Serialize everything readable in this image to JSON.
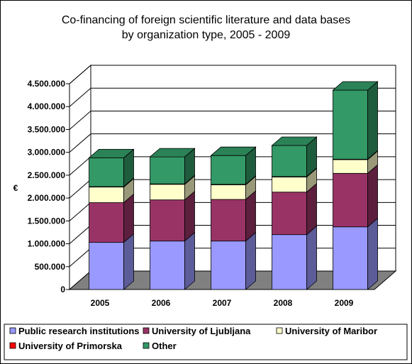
{
  "chart_data": {
    "type": "bar",
    "stacked": true,
    "title_line1": "Co-financing of foreign scientific literature and data bases",
    "title_line2": "by organization type, 2005 - 2009",
    "ylabel": "€",
    "ylim": [
      0,
      4500000
    ],
    "y_ticks": [
      "0",
      "500.000",
      "1.000.000",
      "1.500.000",
      "2.000.000",
      "2.500.000",
      "3.000.000",
      "3.500.000",
      "4.000.000",
      "4.500.000"
    ],
    "categories": [
      "2005",
      "2006",
      "2007",
      "2008",
      "2009"
    ],
    "series": [
      {
        "name": "Public research institutions",
        "color": "#9999ff",
        "values": [
          1030000,
          1060000,
          1060000,
          1200000,
          1370000
        ]
      },
      {
        "name": "University of Ljubljana",
        "color": "#993366",
        "values": [
          870000,
          900000,
          910000,
          930000,
          1170000
        ]
      },
      {
        "name": "University of Maribor",
        "color": "#ffffcc",
        "values": [
          340000,
          340000,
          320000,
          330000,
          300000
        ]
      },
      {
        "name": "University of Primorska",
        "color": "#ff0000",
        "values": [
          10000,
          10000,
          10000,
          10000,
          10000
        ]
      },
      {
        "name": "Other",
        "color": "#339966",
        "values": [
          630000,
          590000,
          630000,
          680000,
          1510000
        ]
      }
    ],
    "grid": true,
    "legend_position": "bottom"
  }
}
